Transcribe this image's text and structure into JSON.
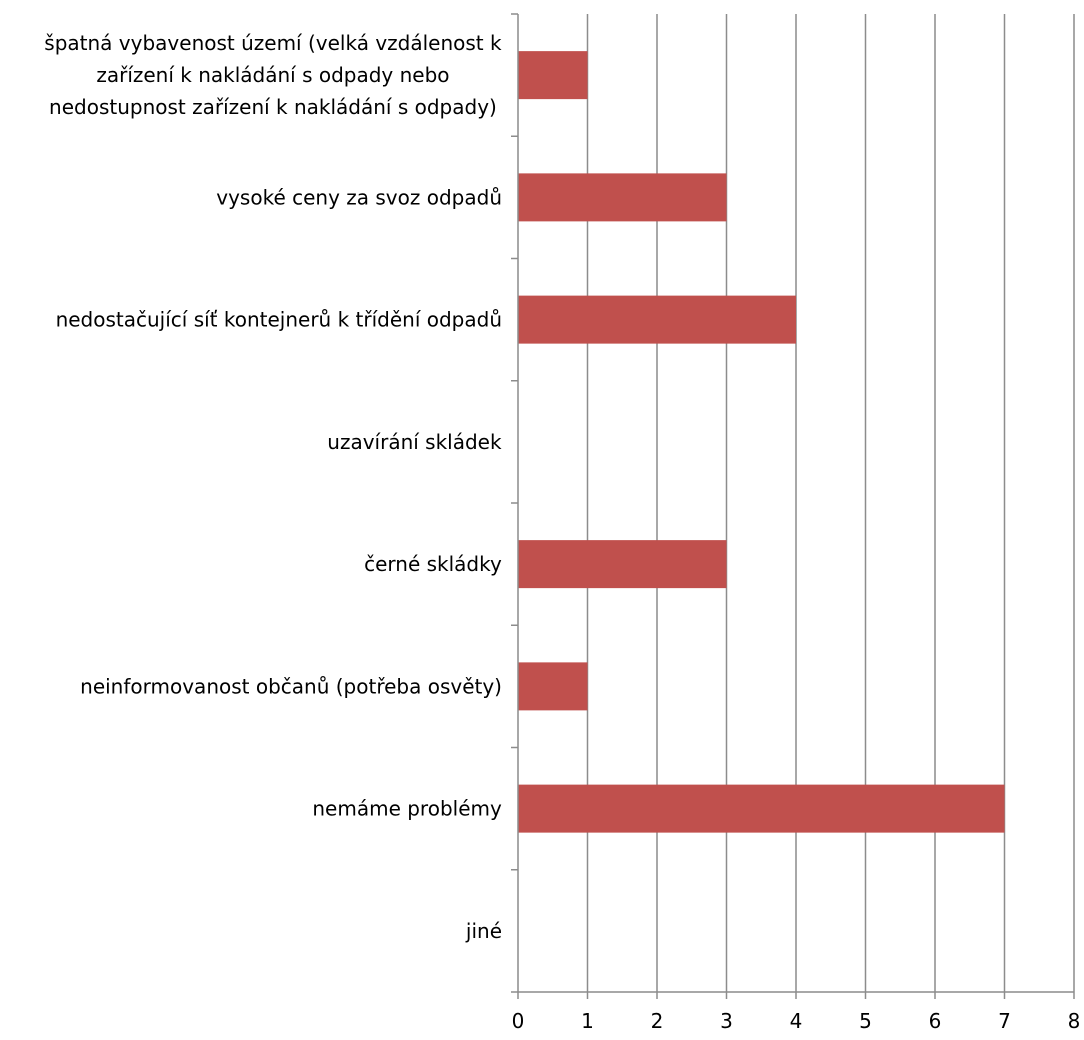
{
  "chart_data": {
    "type": "bar",
    "orientation": "horizontal",
    "title": "",
    "xlabel": "",
    "ylabel": "",
    "xlim": [
      0,
      8
    ],
    "x_ticks": [
      "0",
      "1",
      "2",
      "3",
      "4",
      "5",
      "6",
      "7",
      "8"
    ],
    "grid": "vertical",
    "legend": "none",
    "bar_color": "#c0504d",
    "categories": [
      "špatná vybavenost území (velká vzdálenost k zařízení k nakládání s odpady nebo nedostupnost zařízení k nakládání s odpady)",
      "vysoké ceny za svoz odpadů",
      "nedostačující síť kontejnerů k třídění odpadů",
      "uzavírání skládek",
      "černé skládky",
      "neinformovanost občanů (potřeba osvěty)",
      "nemáme problémy",
      "jiné"
    ],
    "category_label_lines": [
      [
        "špatná vybavenost území (velká vzdálenost k",
        "zařízení k nakládání s odpady nebo",
        "nedostupnost zařízení k nakládání s odpady)"
      ],
      [
        "vysoké ceny za svoz odpadů"
      ],
      [
        "nedostačující síť kontejnerů k třídění odpadů"
      ],
      [
        "uzavírání skládek"
      ],
      [
        "černé skládky"
      ],
      [
        "neinformovanost občanů (potřeba osvěty)"
      ],
      [
        "nemáme problémy"
      ],
      [
        "jiné"
      ]
    ],
    "values": [
      1,
      3,
      4,
      0,
      3,
      1,
      7,
      0
    ]
  }
}
